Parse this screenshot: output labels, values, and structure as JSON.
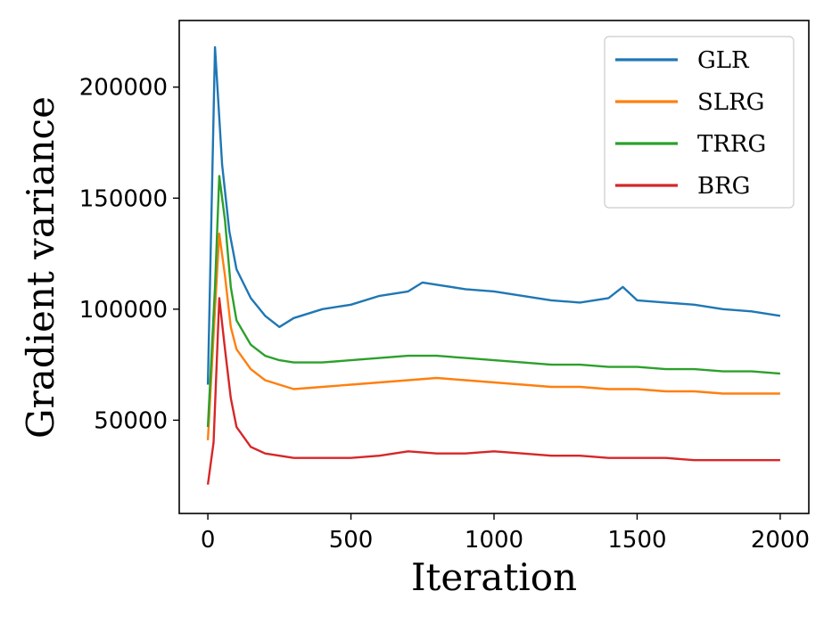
{
  "chart_data": {
    "type": "line",
    "title": "",
    "xlabel": "Iteration",
    "ylabel": "Gradient variance",
    "xlim": [
      -100,
      2100
    ],
    "ylim": [
      8000,
      230000
    ],
    "xticks": [
      0,
      500,
      1000,
      1500,
      2000
    ],
    "yticks": [
      50000,
      100000,
      150000,
      200000
    ],
    "legend_position": "top-right",
    "grid": false,
    "colors": {
      "GLR": "#1f77b4",
      "SLRG": "#ff7f0e",
      "TRRG": "#2ca02c",
      "BRG": "#d62728"
    },
    "series": [
      {
        "name": "GLR",
        "x": [
          0,
          25,
          50,
          75,
          100,
          150,
          200,
          250,
          300,
          400,
          500,
          600,
          700,
          750,
          800,
          900,
          1000,
          1100,
          1200,
          1300,
          1400,
          1450,
          1500,
          1600,
          1700,
          1800,
          1900,
          2000
        ],
        "y": [
          66000,
          218000,
          165000,
          135000,
          118000,
          105000,
          97000,
          92000,
          96000,
          100000,
          102000,
          106000,
          108000,
          112000,
          111000,
          109000,
          108000,
          106000,
          104000,
          103000,
          105000,
          110000,
          104000,
          103000,
          102000,
          100000,
          99000,
          97000
        ]
      },
      {
        "name": "SLRG",
        "x": [
          0,
          25,
          40,
          60,
          80,
          100,
          150,
          200,
          250,
          300,
          400,
          500,
          600,
          700,
          800,
          900,
          1000,
          1100,
          1200,
          1300,
          1400,
          1500,
          1600,
          1700,
          1800,
          1900,
          2000
        ],
        "y": [
          41000,
          100000,
          134000,
          115000,
          92000,
          82000,
          73000,
          68000,
          66000,
          64000,
          65000,
          66000,
          67000,
          68000,
          69000,
          68000,
          67000,
          66000,
          65000,
          65000,
          64000,
          64000,
          63000,
          63000,
          62000,
          62000,
          62000
        ]
      },
      {
        "name": "TRRG",
        "x": [
          0,
          25,
          40,
          60,
          80,
          100,
          150,
          200,
          250,
          300,
          400,
          500,
          600,
          700,
          800,
          900,
          1000,
          1100,
          1200,
          1300,
          1400,
          1500,
          1600,
          1700,
          1800,
          1900,
          2000
        ],
        "y": [
          47000,
          110000,
          160000,
          140000,
          110000,
          95000,
          84000,
          79000,
          77000,
          76000,
          76000,
          77000,
          78000,
          79000,
          79000,
          78000,
          77000,
          76000,
          75000,
          75000,
          74000,
          74000,
          73000,
          73000,
          72000,
          72000,
          71000
        ]
      },
      {
        "name": "BRG",
        "x": [
          0,
          20,
          40,
          60,
          80,
          100,
          150,
          200,
          250,
          300,
          400,
          500,
          600,
          700,
          800,
          900,
          1000,
          1100,
          1200,
          1300,
          1400,
          1500,
          1600,
          1700,
          1800,
          1900,
          2000
        ],
        "y": [
          21000,
          40000,
          105000,
          82000,
          60000,
          47000,
          38000,
          35000,
          34000,
          33000,
          33000,
          33000,
          34000,
          36000,
          35000,
          35000,
          36000,
          35000,
          34000,
          34000,
          33000,
          33000,
          33000,
          32000,
          32000,
          32000,
          32000
        ]
      }
    ]
  }
}
